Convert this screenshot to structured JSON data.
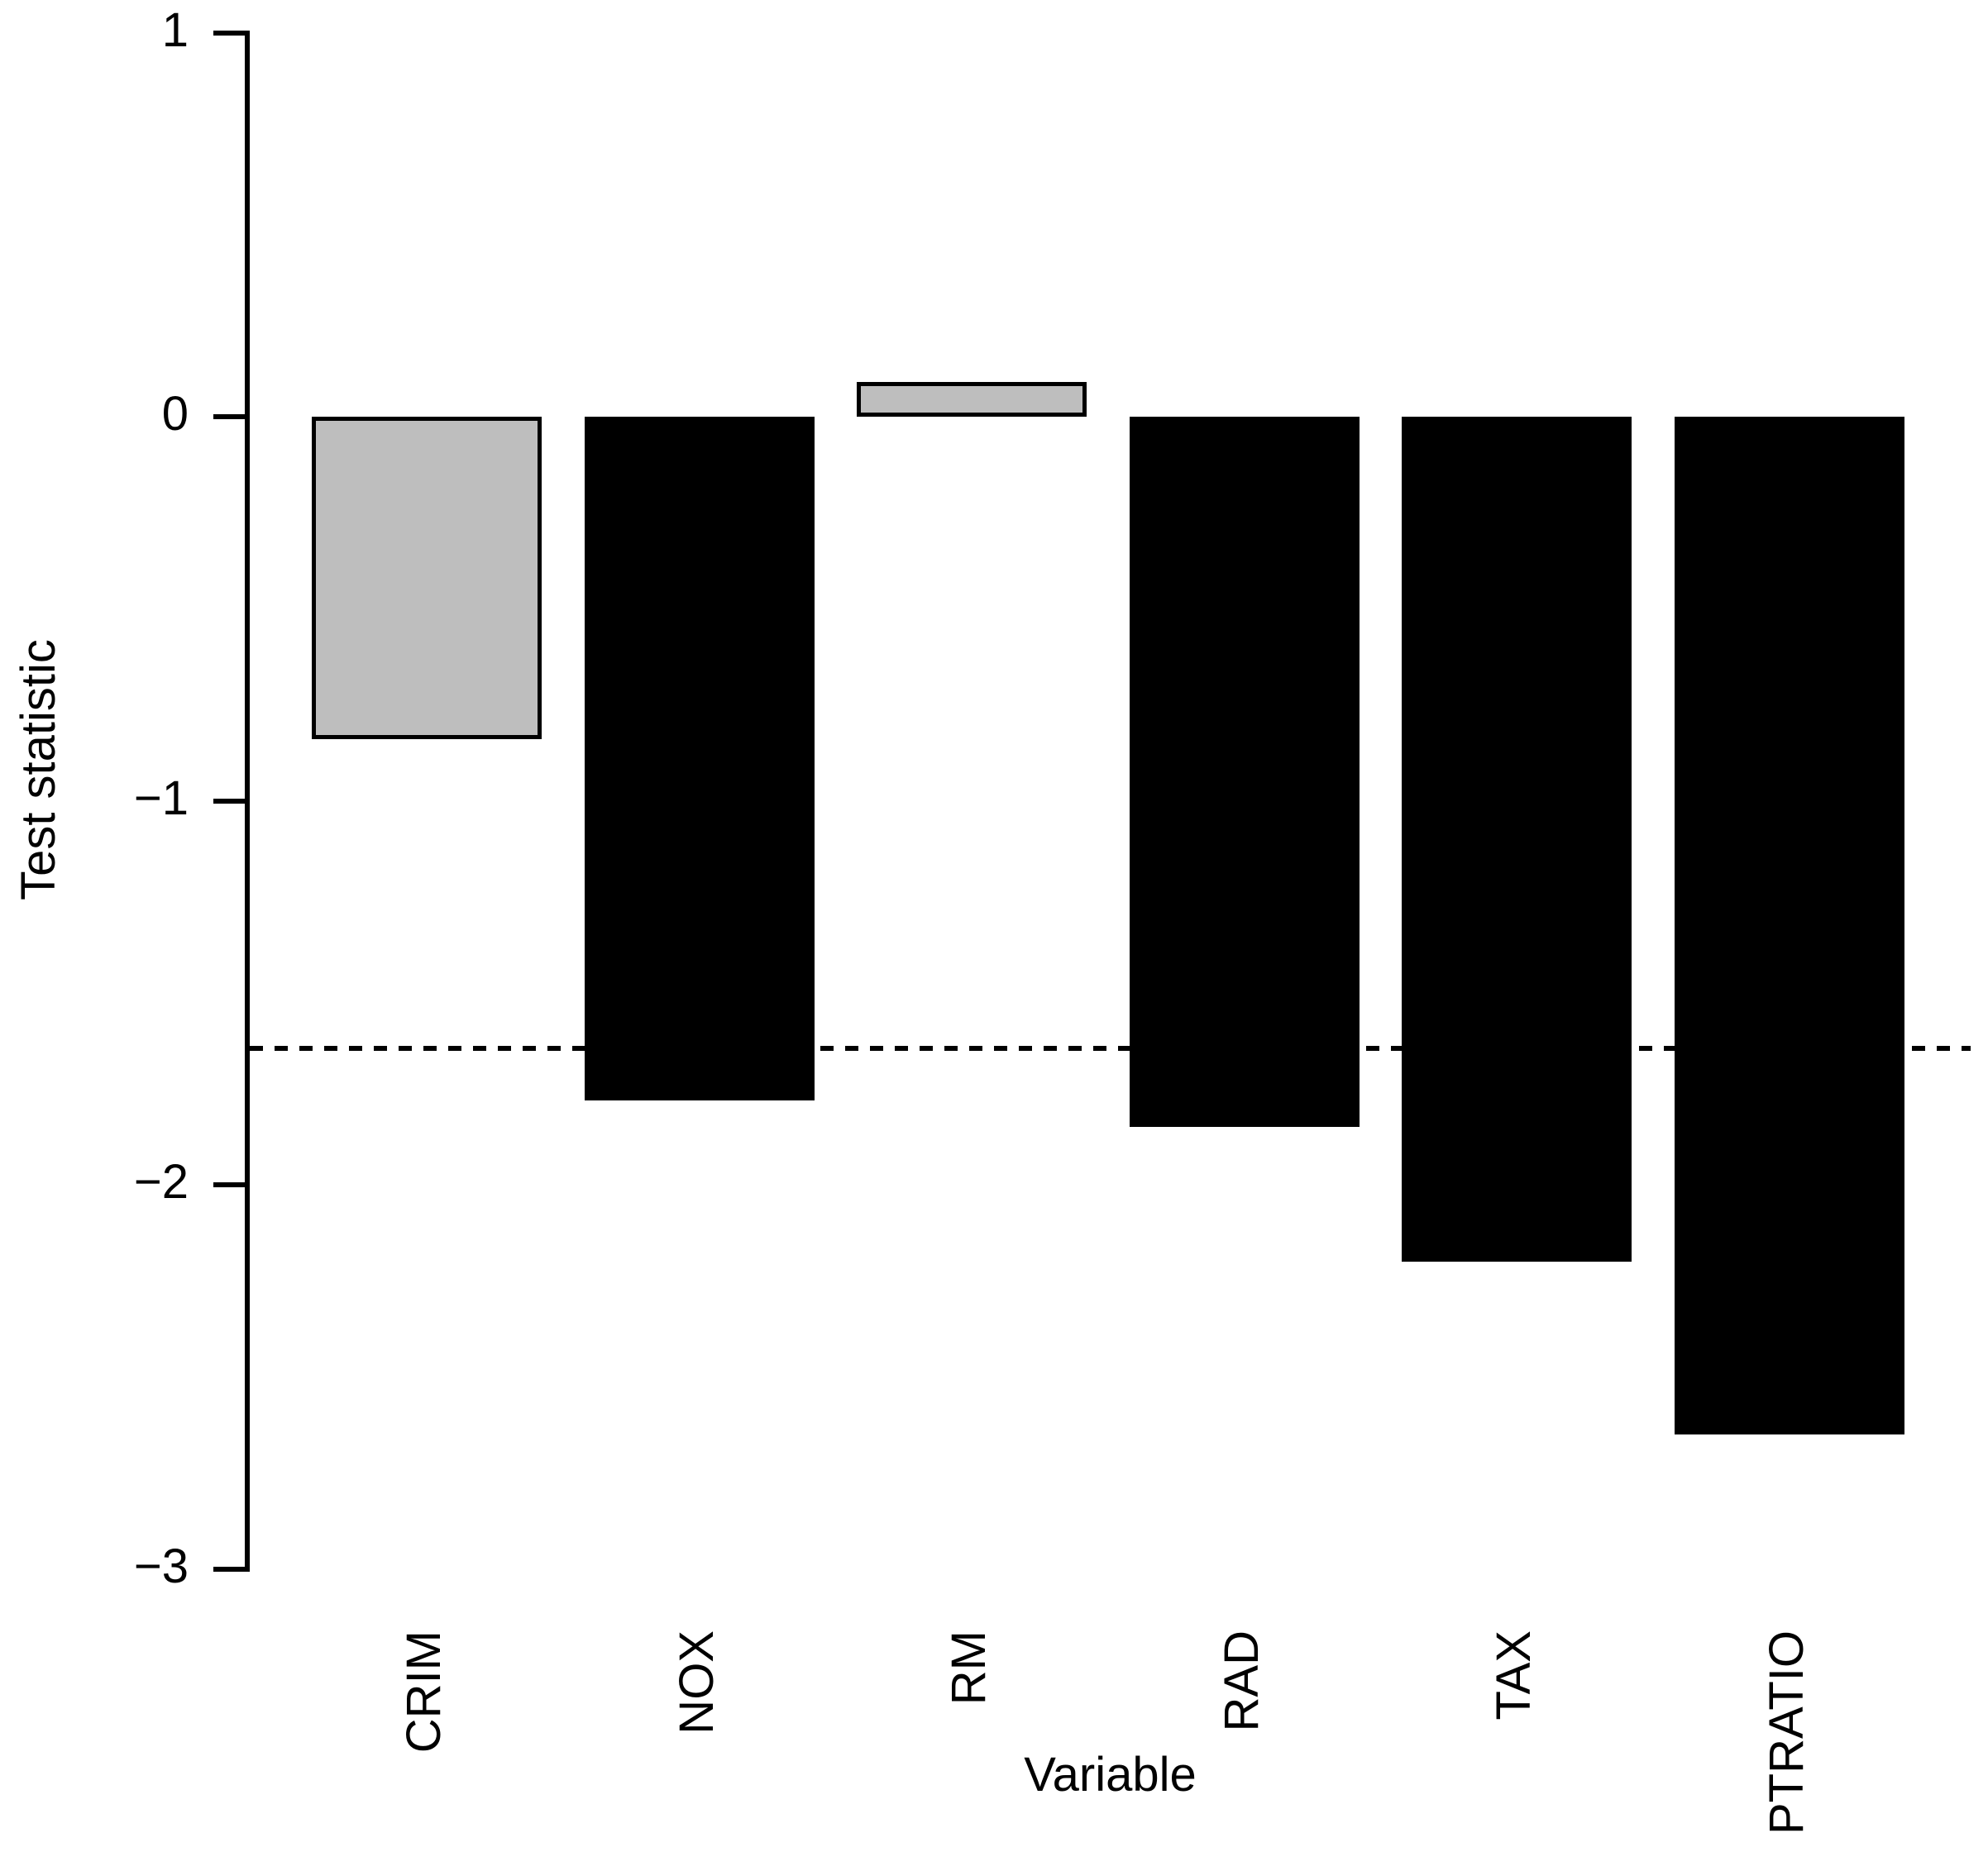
{
  "figure": {
    "background_color": "#ffffff",
    "axis_color": "#000000",
    "text_color": "#000000"
  },
  "chart_data": {
    "type": "bar",
    "title": "",
    "xlabel": "Variable",
    "ylabel": "Test statistic",
    "categories": [
      "CRIM",
      "NOX",
      "RM",
      "RAD",
      "TAX",
      "PTRATIO"
    ],
    "values": [
      -0.84,
      -1.78,
      0.09,
      -1.85,
      -2.2,
      -2.65
    ],
    "bar_colors": [
      "#BEBEBE",
      "#000000",
      "#BEBEBE",
      "#000000",
      "#000000",
      "#000000"
    ],
    "bar_border_color": "#000000",
    "ylim": [
      -3,
      1
    ],
    "yticks": [
      1,
      0,
      -1,
      -2,
      -3
    ],
    "ytick_labels": [
      "1",
      "0",
      "−1",
      "−2",
      "−3"
    ],
    "reference_line": {
      "value": -1.645,
      "style": "dashed",
      "color": "#000000"
    },
    "grid": false,
    "legend": null,
    "x_tick_label_rotation_deg": 90
  }
}
